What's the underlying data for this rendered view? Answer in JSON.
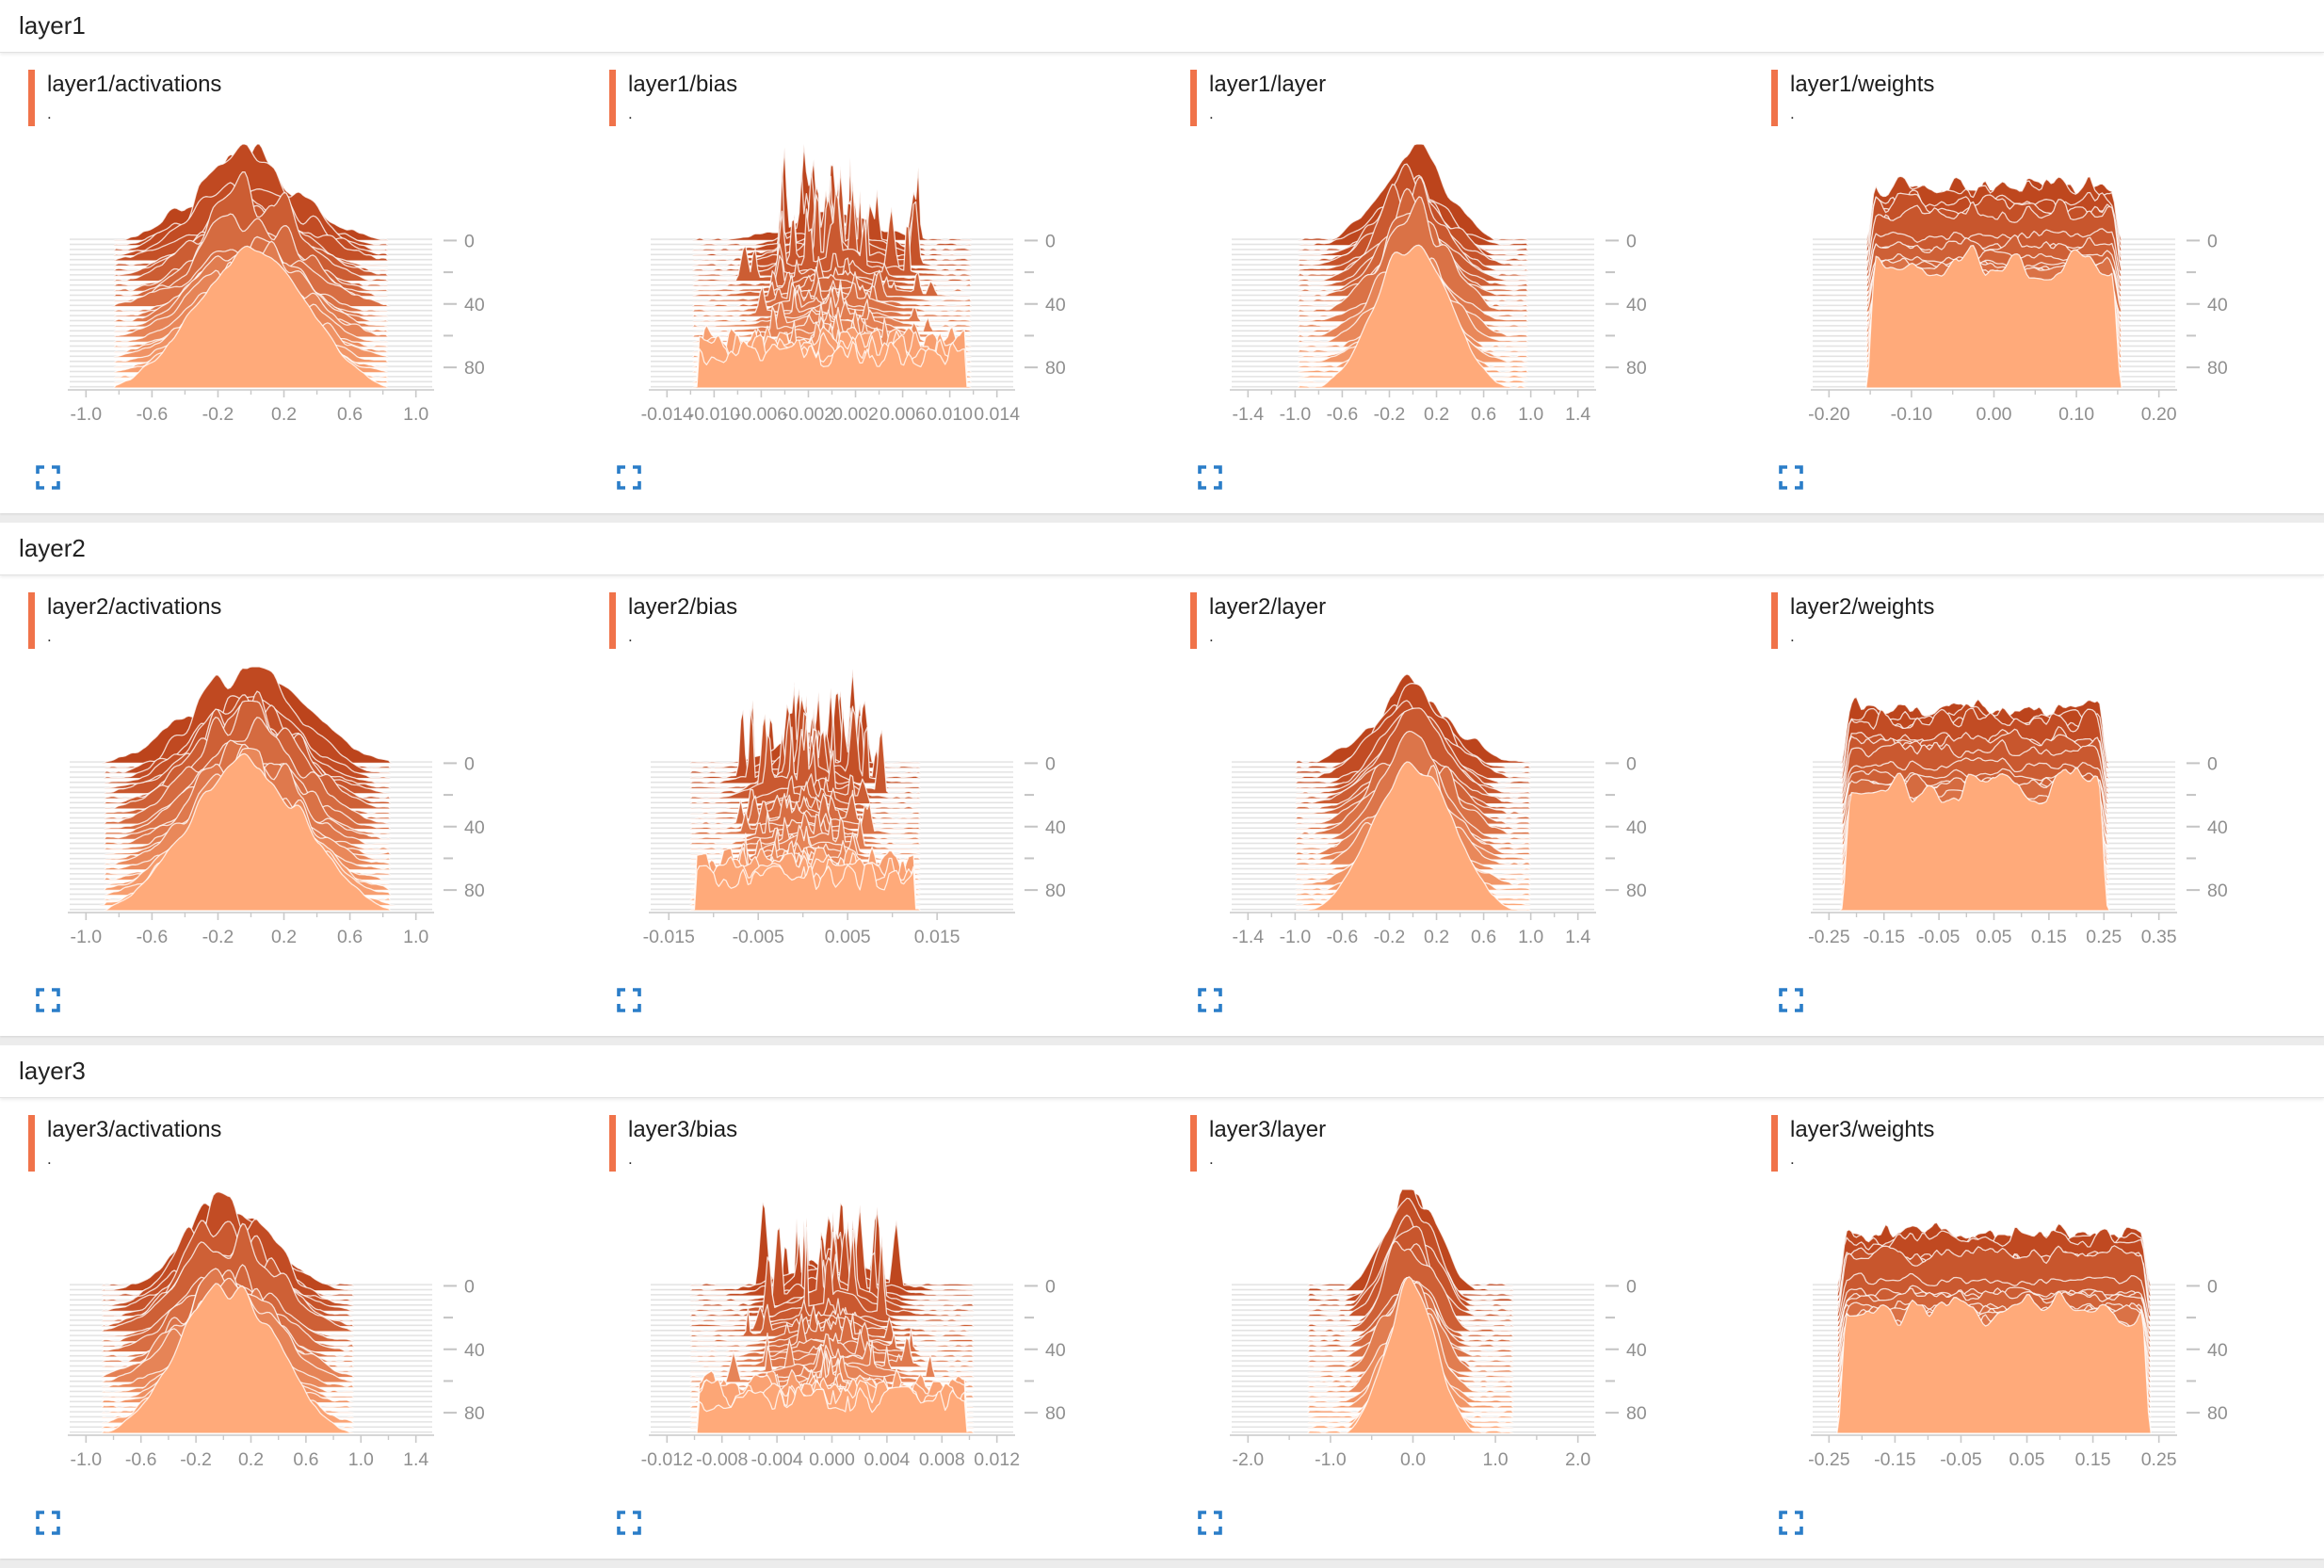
{
  "app": {
    "name": "TensorBoard Histograms dashboard",
    "view": "histograms"
  },
  "colors": {
    "card_accent_orange": "#f0734a",
    "ridge_dark": "#bc441c",
    "ridge_light": "#ffaa7a",
    "ridge_stroke": "rgba(255,255,255,0.78)",
    "stripe_gray": "#e3e3e3",
    "axis_line_gray": "#c9c9c9",
    "axis_text_gray": "#8f8f8f",
    "expand_icon_blue": "#2a7dc8",
    "header_text": "#222222",
    "panel_bg": "#ffffff",
    "page_bg": "#ececec"
  },
  "icons": {
    "expand": "fullscreen-expand-icon"
  },
  "y_axis": {
    "ticks": [
      0,
      40,
      80
    ],
    "minor_ticks": [
      20,
      60
    ],
    "step_max": 93
  },
  "sections": [
    {
      "title": "layer1",
      "charts": [
        {
          "title": "layer1/activations",
          "run": ".",
          "type": "histogram-ridge",
          "shape": "bell",
          "x_ticks": [
            "-1.0",
            "-0.6",
            "-0.2",
            "0.2",
            "0.6",
            "1.0"
          ],
          "support": [
            -0.82,
            0.82
          ],
          "mass_scale": 0.95,
          "seed": 101
        },
        {
          "title": "layer1/bias",
          "run": ".",
          "type": "histogram-ridge",
          "shape": "spiky",
          "x_ticks": [
            "-0.014",
            "-0.010",
            "-0.006",
            "-0.002",
            "0.002",
            "0.006",
            "0.010",
            "0.014"
          ],
          "support": [
            -0.0118,
            0.0118
          ],
          "mass_scale": 0.9,
          "seed": 102
        },
        {
          "title": "layer1/layer",
          "run": ".",
          "type": "histogram-ridge",
          "shape": "bell",
          "x_ticks": [
            "-1.4",
            "-1.0",
            "-0.6",
            "-0.2",
            "0.2",
            "0.6",
            "1.0",
            "1.4"
          ],
          "support": [
            -0.97,
            0.97
          ],
          "mass_scale": 0.75,
          "seed": 103
        },
        {
          "title": "layer1/weights",
          "run": ".",
          "type": "histogram-ridge",
          "shape": "plateau",
          "x_ticks": [
            "-0.20",
            "-0.10",
            "0.00",
            "0.10",
            "0.20"
          ],
          "support": [
            -0.155,
            0.155
          ],
          "mass_scale": 1.0,
          "seed": 104
        }
      ]
    },
    {
      "title": "layer2",
      "charts": [
        {
          "title": "layer2/activations",
          "run": ".",
          "type": "histogram-ridge",
          "shape": "bell",
          "x_ticks": [
            "-1.0",
            "-0.6",
            "-0.2",
            "0.2",
            "0.6",
            "1.0"
          ],
          "support": [
            -0.88,
            0.84
          ],
          "mass_scale": 0.95,
          "seed": 105
        },
        {
          "title": "layer2/bias",
          "run": ".",
          "type": "histogram-ridge",
          "shape": "spiky",
          "x_ticks": [
            "-0.015",
            "-0.005",
            "0.005",
            "0.015"
          ],
          "support": [
            -0.0125,
            0.013
          ],
          "mass_scale": 0.9,
          "tick_span": [
            0.05,
            0.79
          ],
          "seed": 106
        },
        {
          "title": "layer2/layer",
          "run": ".",
          "type": "histogram-ridge",
          "shape": "bell",
          "x_ticks": [
            "-1.4",
            "-1.0",
            "-0.6",
            "-0.2",
            "0.2",
            "0.6",
            "1.0",
            "1.4"
          ],
          "support": [
            -1.0,
            1.0
          ],
          "mass_scale": 0.78,
          "seed": 107
        },
        {
          "title": "layer2/weights",
          "run": ".",
          "type": "histogram-ridge",
          "shape": "plateau",
          "x_ticks": [
            "-0.25",
            "-0.15",
            "-0.05",
            "0.05",
            "0.15",
            "0.25",
            "0.35"
          ],
          "support": [
            -0.228,
            0.258
          ],
          "mass_scale": 1.0,
          "seed": 108
        }
      ]
    },
    {
      "title": "layer3",
      "charts": [
        {
          "title": "layer3/activations",
          "run": ".",
          "type": "histogram-ridge",
          "shape": "bell",
          "x_ticks": [
            "-1.0",
            "-0.6",
            "-0.2",
            "0.2",
            "0.6",
            "1.0",
            "1.4"
          ],
          "support": [
            -0.88,
            0.95
          ],
          "mass_scale": 0.9,
          "seed": 109
        },
        {
          "title": "layer3/bias",
          "run": ".",
          "type": "histogram-ridge",
          "shape": "spiky",
          "x_ticks": [
            "-0.012",
            "-0.008",
            "-0.004",
            "0.000",
            "0.004",
            "0.008",
            "0.012"
          ],
          "support": [
            -0.0102,
            0.0102
          ],
          "mass_scale": 0.9,
          "seed": 110
        },
        {
          "title": "layer3/layer",
          "run": ".",
          "type": "histogram-ridge",
          "shape": "bell",
          "x_ticks": [
            "-2.0",
            "-1.0",
            "0.0",
            "1.0",
            "2.0"
          ],
          "support": [
            -1.28,
            1.22
          ],
          "mass_scale": 0.58,
          "seed": 111
        },
        {
          "title": "layer3/weights",
          "run": ".",
          "type": "histogram-ridge",
          "shape": "plateau",
          "x_ticks": [
            "-0.25",
            "-0.15",
            "-0.05",
            "0.05",
            "0.15",
            "0.25"
          ],
          "support": [
            -0.238,
            0.238
          ],
          "mass_scale": 1.0,
          "seed": 112
        }
      ]
    }
  ],
  "chart_data": {
    "note": "TensorBoard histogram (offset ridge) charts; ~30 step-slices per chart, steps 0-93 front-to-back, right axis labels 0/40/80",
    "charts_summary": [
      {
        "title": "layer1/activations",
        "x_domain": [
          -1.0,
          1.0
        ],
        "mass_extent": [
          -0.82,
          0.82
        ],
        "profile": "bell"
      },
      {
        "title": "layer1/bias",
        "x_domain": [
          -0.014,
          0.014
        ],
        "mass_extent": [
          -0.0118,
          0.0118
        ],
        "profile": "spiky-center"
      },
      {
        "title": "layer1/layer",
        "x_domain": [
          -1.4,
          1.4
        ],
        "mass_extent": [
          -0.97,
          0.97
        ],
        "profile": "bell"
      },
      {
        "title": "layer1/weights",
        "x_domain": [
          -0.2,
          0.2
        ],
        "mass_extent": [
          -0.155,
          0.155
        ],
        "profile": "flat-top"
      },
      {
        "title": "layer2/activations",
        "x_domain": [
          -1.0,
          1.0
        ],
        "mass_extent": [
          -0.88,
          0.84
        ],
        "profile": "bell"
      },
      {
        "title": "layer2/bias",
        "x_domain": [
          -0.015,
          0.015
        ],
        "mass_extent": [
          -0.0125,
          0.013
        ],
        "profile": "spiky-center"
      },
      {
        "title": "layer2/layer",
        "x_domain": [
          -1.4,
          1.4
        ],
        "mass_extent": [
          -1.0,
          1.0
        ],
        "profile": "bell"
      },
      {
        "title": "layer2/weights",
        "x_domain": [
          -0.25,
          0.35
        ],
        "mass_extent": [
          -0.228,
          0.258
        ],
        "profile": "flat-top"
      },
      {
        "title": "layer3/activations",
        "x_domain": [
          -1.0,
          1.4
        ],
        "mass_extent": [
          -0.88,
          0.95
        ],
        "profile": "bell"
      },
      {
        "title": "layer3/bias",
        "x_domain": [
          -0.012,
          0.012
        ],
        "mass_extent": [
          -0.0102,
          0.0102
        ],
        "profile": "spiky-center"
      },
      {
        "title": "layer3/layer",
        "x_domain": [
          -2.0,
          2.0
        ],
        "mass_extent": [
          -1.28,
          1.22
        ],
        "profile": "narrow-bell"
      },
      {
        "title": "layer3/weights",
        "x_domain": [
          -0.25,
          0.25
        ],
        "mass_extent": [
          -0.238,
          0.238
        ],
        "profile": "flat-top"
      }
    ]
  }
}
